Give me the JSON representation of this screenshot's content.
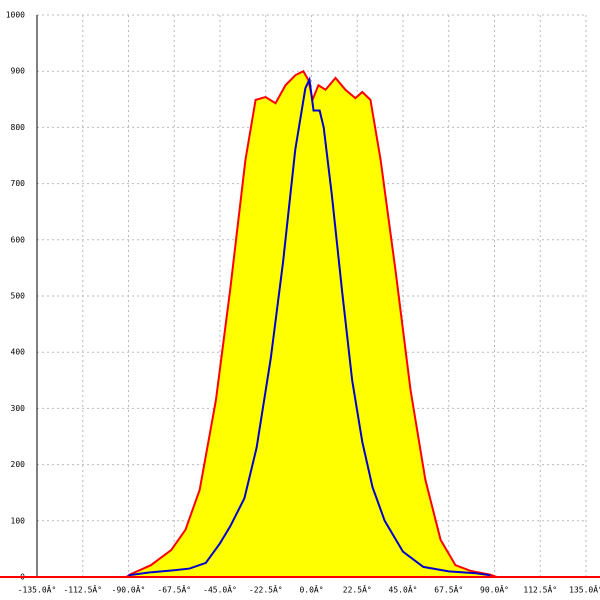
{
  "chart_data": {
    "type": "area_line",
    "xlim": [
      -135,
      135
    ],
    "ylim": [
      0,
      1000
    ],
    "xticks": [
      {
        "value": -135,
        "label": "-135.0Â°"
      },
      {
        "value": -112.5,
        "label": "-112.5Â°"
      },
      {
        "value": -90,
        "label": "-90.0Â°"
      },
      {
        "value": -67.5,
        "label": "-67.5Â°"
      },
      {
        "value": -45,
        "label": "-45.0Â°"
      },
      {
        "value": -22.5,
        "label": "-22.5Â°"
      },
      {
        "value": 0,
        "label": "0.0Â°"
      },
      {
        "value": 22.5,
        "label": "22.5Â°"
      },
      {
        "value": 45,
        "label": "45.0Â°"
      },
      {
        "value": 67.5,
        "label": "67.5Â°"
      },
      {
        "value": 90,
        "label": "90.0Â°"
      },
      {
        "value": 112.5,
        "label": "112.5Â°"
      },
      {
        "value": 135,
        "label": "135.0Â°"
      }
    ],
    "yticks": [
      0,
      100,
      200,
      300,
      400,
      500,
      600,
      700,
      800,
      900,
      1000
    ],
    "grid": true,
    "series": [
      {
        "color": "#ff0000",
        "fill": "#ffff00",
        "x": [
          -135,
          -91,
          -89,
          -79,
          -69,
          -62,
          -55,
          -47,
          -40,
          -32.5,
          -27.5,
          -22.6,
          -17.7,
          -12.8,
          -7.9,
          -4,
          -1.5,
          0.5,
          3.4,
          6.9,
          11.8,
          16.7,
          21.6,
          25,
          29,
          34,
          41.3,
          48.7,
          56,
          63.5,
          70.8,
          78.2,
          88,
          91,
          135
        ],
        "values": [
          0,
          0,
          5,
          21,
          48,
          84,
          155,
          315,
          511,
          742,
          849,
          854,
          843,
          875,
          893,
          900,
          884,
          849,
          875,
          867,
          888,
          867,
          852,
          863,
          849,
          742,
          546,
          333,
          173,
          66,
          21,
          11,
          4,
          0,
          0
        ]
      },
      {
        "color": "#0000cc",
        "x": [
          -90,
          -80,
          -67.5,
          -60,
          -52,
          -45,
          -40,
          -33,
          -27,
          -20,
          -14,
          -8,
          -3,
          -1,
          1,
          4,
          6,
          10,
          15,
          20,
          25,
          30,
          36,
          45,
          55,
          67.5,
          80,
          88
        ],
        "values": [
          3,
          8,
          12,
          15,
          25,
          60,
          90,
          140,
          230,
          390,
          560,
          760,
          870,
          885,
          830,
          830,
          800,
          680,
          510,
          350,
          240,
          160,
          100,
          45,
          18,
          10,
          7,
          3
        ]
      }
    ]
  }
}
